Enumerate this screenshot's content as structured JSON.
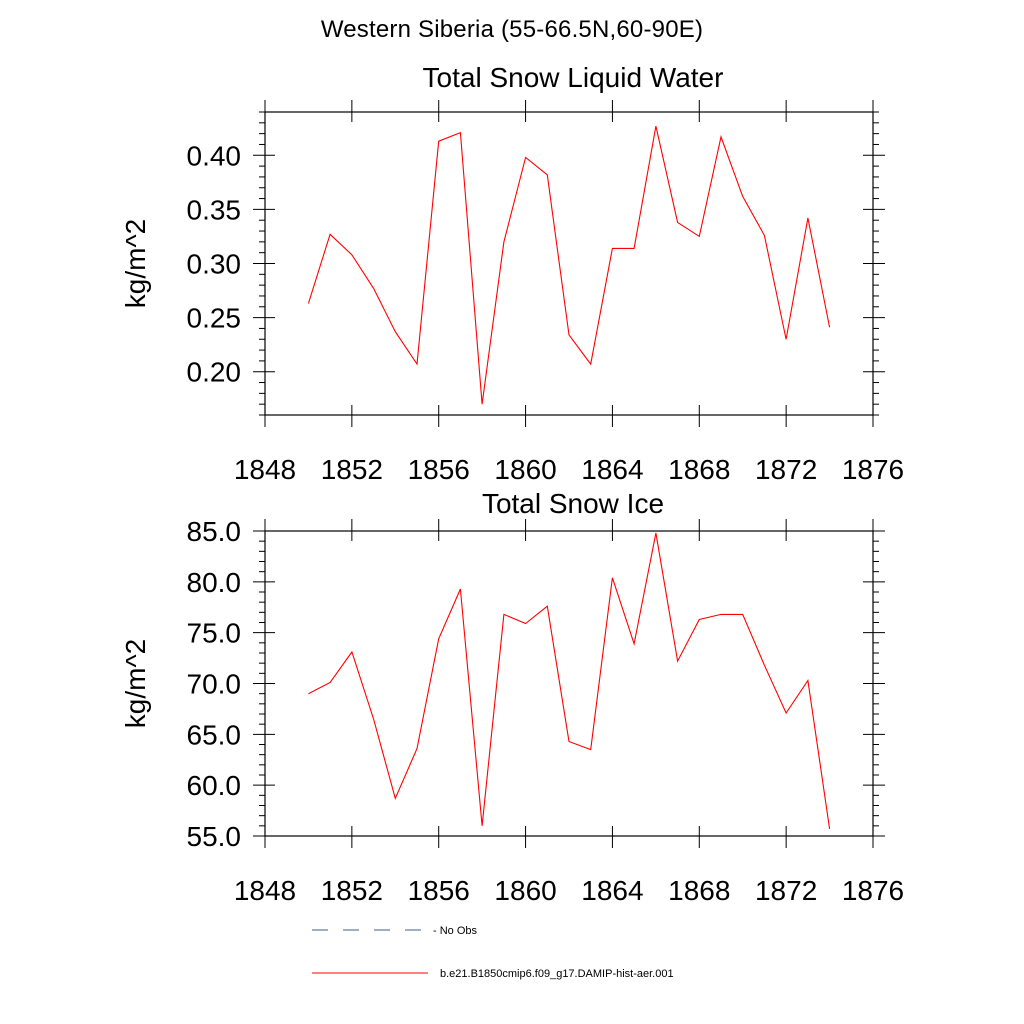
{
  "suptitle": "Western Siberia (55-66.5N,60-90E)",
  "chart_data": [
    {
      "type": "line",
      "title": "Total Snow Liquid Water",
      "xlabel": "",
      "ylabel": "kg/m^2",
      "xlim": [
        1848,
        1876
      ],
      "ylim": [
        0.16,
        0.44
      ],
      "xticks": [
        "1848",
        "1852",
        "1856",
        "1860",
        "1864",
        "1868",
        "1872",
        "1876"
      ],
      "xtick_values": [
        1848,
        1852,
        1856,
        1860,
        1864,
        1868,
        1872,
        1876
      ],
      "yticks": [
        "0.20",
        "0.25",
        "0.30",
        "0.35",
        "0.40"
      ],
      "ytick_values": [
        0.2,
        0.25,
        0.3,
        0.35,
        0.4
      ],
      "x": [
        1850,
        1851,
        1852,
        1853,
        1854,
        1855,
        1856,
        1857,
        1858,
        1859,
        1860,
        1861,
        1862,
        1863,
        1864,
        1865,
        1866,
        1867,
        1868,
        1869,
        1870,
        1871,
        1872,
        1873,
        1874
      ],
      "series": [
        {
          "name": "b.e21.B1850cmip6.f09_g17.DAMIP-hist-aer.001",
          "color": "#ff0000",
          "values": [
            0.263,
            0.327,
            0.308,
            0.277,
            0.237,
            0.207,
            0.413,
            0.421,
            0.17,
            0.32,
            0.398,
            0.382,
            0.234,
            0.207,
            0.314,
            0.314,
            0.427,
            0.338,
            0.325,
            0.417,
            0.362,
            0.326,
            0.23,
            0.342,
            0.241
          ]
        }
      ]
    },
    {
      "type": "line",
      "title": "Total Snow Ice",
      "xlabel": "",
      "ylabel": "kg/m^2",
      "xlim": [
        1848,
        1876
      ],
      "ylim": [
        55.0,
        85.0
      ],
      "xticks": [
        "1848",
        "1852",
        "1856",
        "1860",
        "1864",
        "1868",
        "1872",
        "1876"
      ],
      "xtick_values": [
        1848,
        1852,
        1856,
        1860,
        1864,
        1868,
        1872,
        1876
      ],
      "yticks": [
        "55.0",
        "60.0",
        "65.0",
        "70.0",
        "75.0",
        "80.0",
        "85.0"
      ],
      "ytick_values": [
        55,
        60,
        65,
        70,
        75,
        80,
        85
      ],
      "x": [
        1850,
        1851,
        1852,
        1853,
        1854,
        1855,
        1856,
        1857,
        1858,
        1859,
        1860,
        1861,
        1862,
        1863,
        1864,
        1865,
        1866,
        1867,
        1868,
        1869,
        1870,
        1871,
        1872,
        1873,
        1874
      ],
      "series": [
        {
          "name": "b.e21.B1850cmip6.f09_g17.DAMIP-hist-aer.001",
          "color": "#ff0000",
          "values": [
            69.0,
            70.1,
            73.1,
            66.5,
            58.7,
            63.6,
            74.4,
            79.3,
            56.0,
            76.8,
            75.9,
            77.6,
            64.3,
            63.5,
            80.4,
            73.9,
            84.8,
            72.2,
            76.3,
            76.8,
            76.8,
            71.8,
            67.1,
            70.3,
            55.7
          ]
        }
      ]
    }
  ],
  "legend": [
    {
      "label": "- No Obs",
      "color": "#4a5a8a",
      "style": "dashed"
    },
    {
      "label": "b.e21.B1850cmip6.f09_g17.DAMIP-hist-aer.001",
      "color": "#ff0000",
      "style": "solid"
    }
  ]
}
